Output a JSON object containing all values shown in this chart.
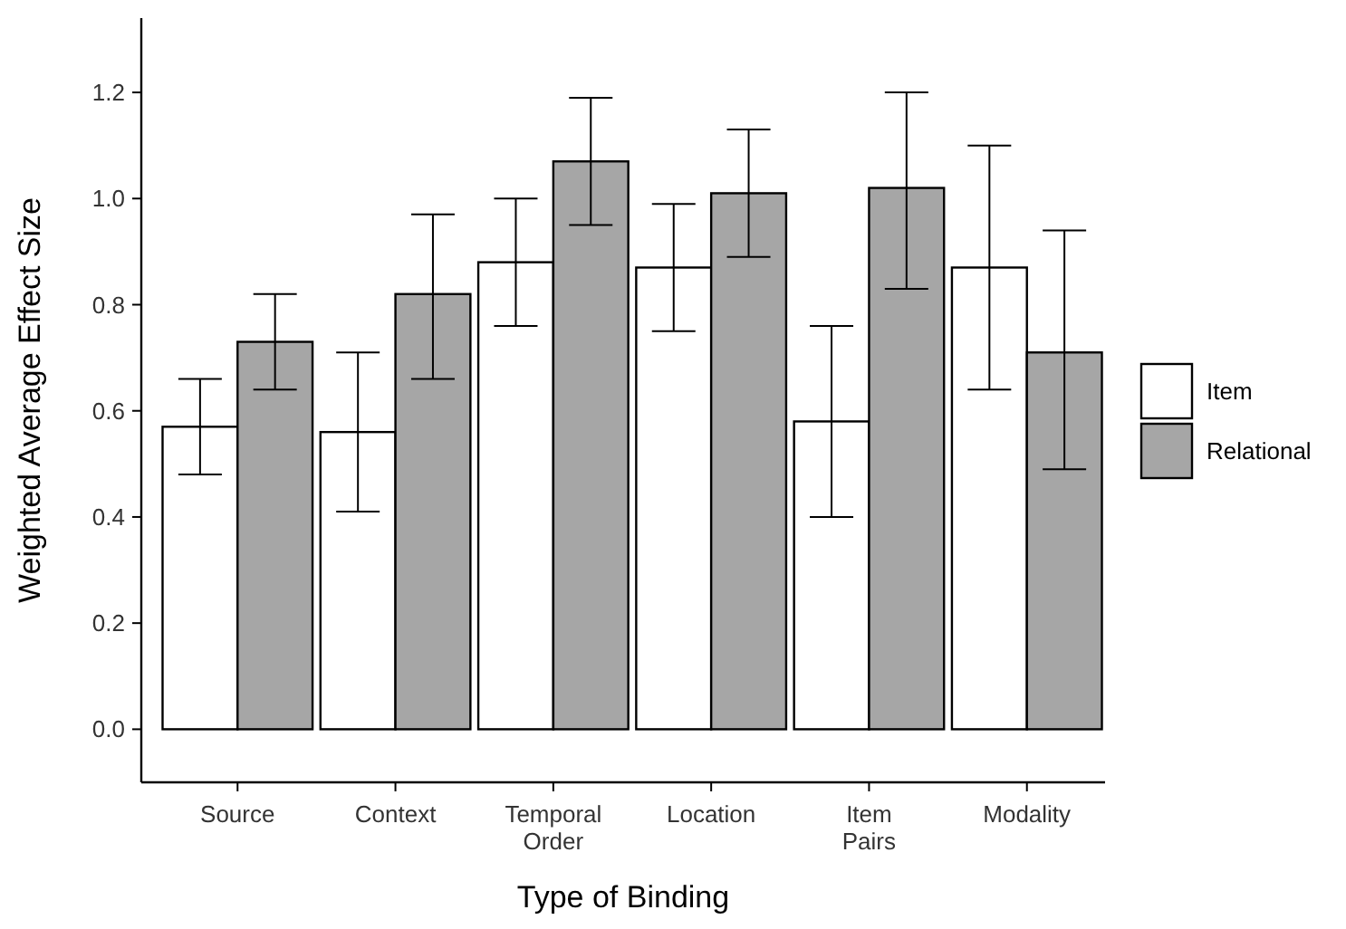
{
  "chart_data": {
    "type": "bar",
    "xlabel": "Type of Binding",
    "ylabel": "Weighted Average Effect Size",
    "categories": [
      "Source",
      "Context",
      "Temporal Order",
      "Location",
      "Item Pairs",
      "Modality"
    ],
    "series": [
      {
        "name": "Item",
        "color": "#ffffff",
        "values": [
          0.57,
          0.56,
          0.88,
          0.87,
          0.58,
          0.87
        ],
        "errors": [
          [
            0.48,
            0.66
          ],
          [
            0.41,
            0.71
          ],
          [
            0.76,
            1.0
          ],
          [
            0.75,
            0.99
          ],
          [
            0.4,
            0.76
          ],
          [
            0.64,
            1.1
          ]
        ]
      },
      {
        "name": "Relational",
        "color": "#a6a6a6",
        "values": [
          0.73,
          0.82,
          1.07,
          1.01,
          1.02,
          0.71
        ],
        "errors": [
          [
            0.64,
            0.82
          ],
          [
            0.66,
            0.97
          ],
          [
            0.95,
            1.19
          ],
          [
            0.89,
            1.13
          ],
          [
            0.83,
            1.2
          ],
          [
            0.49,
            0.94
          ]
        ]
      }
    ],
    "ylim": [
      -0.1,
      1.34
    ],
    "yticks": [
      {
        "value": 0,
        "label": "0.0"
      },
      {
        "value": 0.2,
        "label": "0.2"
      },
      {
        "value": 0.4,
        "label": "0.4"
      },
      {
        "value": 0.6,
        "label": "0.6"
      },
      {
        "value": 0.8,
        "label": "0.8"
      },
      {
        "value": 1,
        "label": "1.0"
      },
      {
        "value": 1.2,
        "label": "1.2"
      }
    ],
    "legend": "right",
    "grid": false
  }
}
